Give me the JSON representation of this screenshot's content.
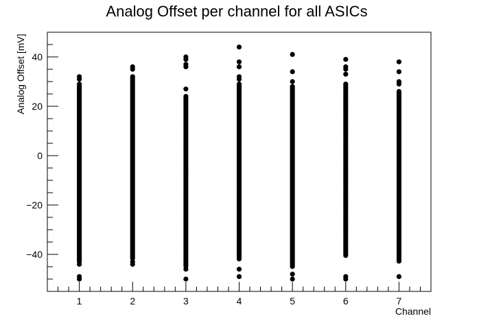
{
  "chart_data": {
    "type": "scatter",
    "title": "Analog Offset per channel for all ASICs",
    "xlabel": "Channel",
    "ylabel": "Analog Offset [mV]",
    "xlim": [
      0.4,
      7.6
    ],
    "ylim": [
      -55,
      50
    ],
    "x_ticks": [
      1,
      2,
      3,
      4,
      5,
      6,
      7
    ],
    "x_tick_labels": [
      "1",
      "2",
      "3",
      "4",
      "5",
      "6",
      "7"
    ],
    "y_ticks": [
      -40,
      -20,
      0,
      20,
      40
    ],
    "y_tick_labels": [
      "−40",
      "−20",
      "0",
      "20",
      "40"
    ],
    "grid": false,
    "marker_color": "#000000",
    "series": [
      {
        "x": 1,
        "dense_range": [
          -43,
          28
        ],
        "outliers": [
          32,
          31,
          29,
          -44,
          -49,
          -50
        ]
      },
      {
        "x": 2,
        "dense_range": [
          -42,
          32
        ],
        "outliers": [
          36,
          35,
          -43,
          -44
        ]
      },
      {
        "x": 3,
        "dense_range": [
          -45,
          24
        ],
        "outliers": [
          40,
          39,
          37,
          36,
          27,
          -46,
          -50
        ]
      },
      {
        "x": 4,
        "dense_range": [
          -42,
          29
        ],
        "outliers": [
          44,
          38,
          36,
          32,
          31,
          -46,
          -49
        ]
      },
      {
        "x": 5,
        "dense_range": [
          -45,
          28
        ],
        "outliers": [
          41,
          34,
          30,
          -48,
          -50
        ]
      },
      {
        "x": 6,
        "dense_range": [
          -41,
          29
        ],
        "outliers": [
          39,
          36,
          35,
          33,
          -49,
          -50
        ]
      },
      {
        "x": 7,
        "dense_range": [
          -43,
          26
        ],
        "outliers": [
          38,
          34,
          30,
          29,
          -49
        ]
      }
    ]
  }
}
